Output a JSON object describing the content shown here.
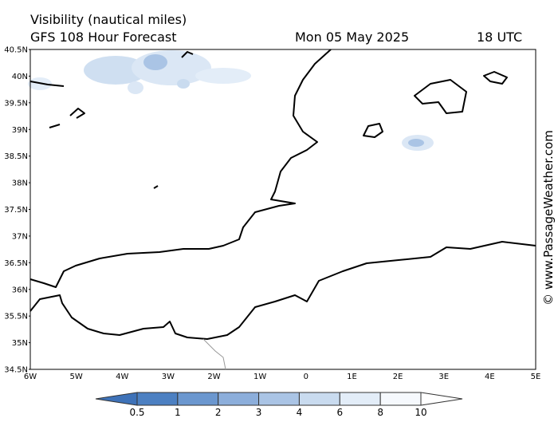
{
  "header": {
    "title": "Visibility (nautical miles)",
    "subtitle": "GFS 108 Hour Forecast",
    "date": "Mon 05 May 2025",
    "time": "18 UTC"
  },
  "axes": {
    "lat_ticks": [
      "40.5N",
      "40N",
      "39.5N",
      "39N",
      "38.5N",
      "38N",
      "37.5N",
      "37N",
      "36.5N",
      "36N",
      "35.5N",
      "35N",
      "34.5N"
    ],
    "lon_ticks": [
      "6W",
      "5W",
      "4W",
      "3W",
      "2W",
      "1W",
      "0",
      "1E",
      "2E",
      "3E",
      "4E",
      "5E"
    ]
  },
  "colorbar": {
    "labels": [
      0.5,
      1,
      2,
      3,
      4,
      6,
      8,
      10
    ],
    "colors": [
      "#3e72b8",
      "#4c80c2",
      "#6b97cf",
      "#8caedb",
      "#aac4e5",
      "#c9dbef",
      "#e3edf8",
      "#f6f9fd",
      "#ffffff"
    ]
  },
  "watermark": "© www.PassageWeather.com"
}
